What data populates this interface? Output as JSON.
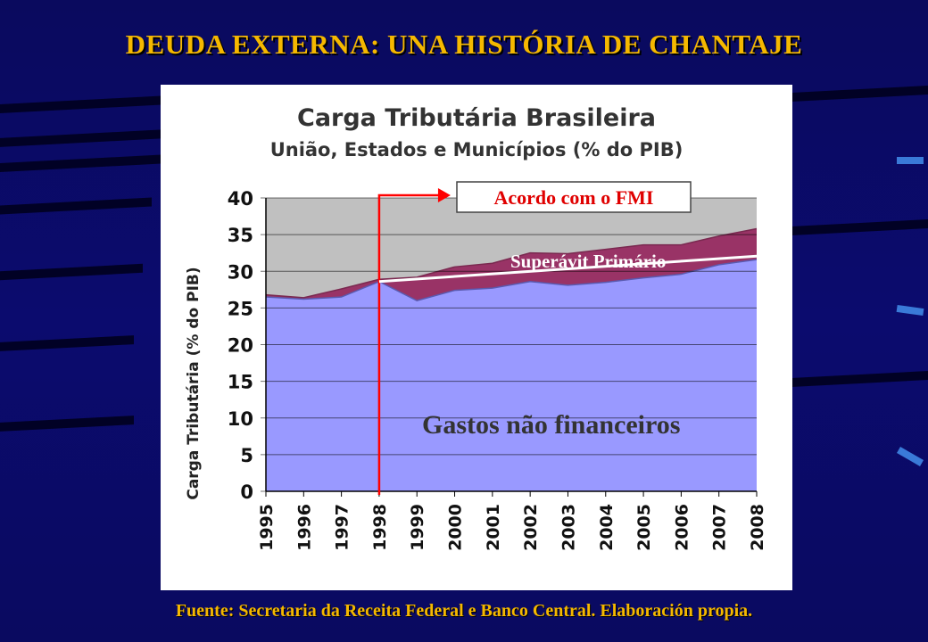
{
  "slide": {
    "title": "DEUDA EXTERNA: UNA HISTÓRIA DE CHANTAJE",
    "footer": "Fuente: Secretaria da Receita Federal e Banco Central. Elaboración propia.",
    "colors": {
      "background": "#0a0a66",
      "title": "#f5b800"
    }
  },
  "chart_data": {
    "type": "area",
    "title": "Carga Tributária Brasileira",
    "subtitle": "União, Estados e Municípios (% do PIB)",
    "ylabel": "Carga Tributária (% do PIB)",
    "xlabel": "",
    "ylim": [
      0,
      40
    ],
    "yticks": [
      0,
      5,
      10,
      15,
      20,
      25,
      30,
      35,
      40
    ],
    "x": [
      "1995",
      "1996",
      "1997",
      "1998",
      "1999",
      "2000",
      "2001",
      "2002",
      "2003",
      "2004",
      "2005",
      "2006",
      "2007",
      "2008"
    ],
    "grid": true,
    "series": [
      {
        "name": "Gastos não financeiros",
        "color": "#9999ff",
        "values": [
          26.5,
          26.2,
          26.5,
          28.6,
          26.0,
          27.4,
          27.7,
          28.6,
          28.1,
          28.5,
          29.1,
          29.6,
          30.9,
          31.6
        ]
      },
      {
        "name": "Superávit Primário",
        "color": "#993366",
        "values": [
          26.8,
          26.4,
          27.6,
          28.9,
          29.2,
          30.6,
          31.1,
          32.5,
          32.4,
          33.0,
          33.6,
          33.6,
          34.8,
          35.8
        ]
      }
    ],
    "annotations": {
      "imf_agreement_label": "Acordo com o FMI",
      "imf_agreement_year": "1998",
      "surplus_label": "Superávit Primário",
      "spending_label": "Gastos não financeiros"
    },
    "colors": {
      "remaining": "#c0c0c0",
      "marker_line": "#ff0000",
      "reference_line": "#ffffff"
    }
  }
}
